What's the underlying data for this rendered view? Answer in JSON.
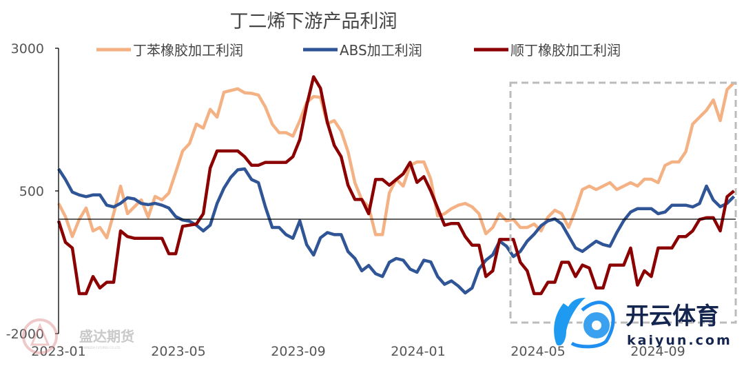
{
  "chart_data": {
    "type": "line",
    "title": "丁二烯下游产品利润",
    "xlabel": "",
    "ylabel": "",
    "ylim": [
      -2000,
      3000
    ],
    "yticks": [
      3000,
      500,
      -2000
    ],
    "reference_line_y": 0,
    "x_start": "2023-01",
    "x_step_months": 0.23,
    "xticks": [
      {
        "label": "2023-01",
        "month": 0
      },
      {
        "label": "2023-05",
        "month": 4
      },
      {
        "label": "2023-09",
        "month": 8
      },
      {
        "label": "2024-01",
        "month": 12
      },
      {
        "label": "2024-05",
        "month": 16
      },
      {
        "label": "2024-09",
        "month": 20
      }
    ],
    "legend_position": "top",
    "series": [
      {
        "name": "丁苯橡胶加工利润",
        "color": "#F4B183",
        "values": [
          283,
          50,
          -300,
          0,
          200,
          -200,
          -140,
          -321,
          101,
          585,
          101,
          222,
          343,
          41,
          403,
          343,
          464,
          826,
          1200,
          1330,
          1672,
          1600,
          1930,
          1793,
          2230,
          2260,
          2290,
          2220,
          2210,
          2180,
          1970,
          1670,
          1520,
          1520,
          1460,
          1732,
          2050,
          2155,
          2140,
          1680,
          1732,
          1551,
          1189,
          645,
          343,
          222,
          -266,
          -266,
          464,
          705,
          585,
          947,
          1007,
          1007,
          705,
          60,
          100,
          190,
          250,
          280,
          222,
          100,
          -250,
          -140,
          101,
          -24,
          0,
          -140,
          -140,
          -80,
          -200,
          41,
          162,
          101,
          -140,
          162,
          524,
          585,
          524,
          585,
          645,
          524,
          585,
          645,
          585,
          705,
          705,
          645,
          947,
          1007,
          1007,
          1189,
          1672,
          1793,
          1913,
          2094,
          1732,
          2276,
          2397
        ]
      },
      {
        "name": "ABS加工利润",
        "color": "#2F5597",
        "values": [
          887,
          700,
          480,
          430,
          400,
          430,
          430,
          250,
          220,
          283,
          380,
          360,
          280,
          260,
          283,
          250,
          200,
          50,
          -10,
          -30,
          -100,
          -200,
          -100,
          280,
          550,
          740,
          870,
          887,
          700,
          645,
          222,
          -140,
          -140,
          -266,
          -330,
          -24,
          -442,
          -623,
          -321,
          -230,
          -266,
          -266,
          -563,
          -684,
          -900,
          -805,
          -950,
          -1000,
          -750,
          -684,
          -714,
          -870,
          -925,
          -714,
          -744,
          -1000,
          -1137,
          -1076,
          -1167,
          -1288,
          -1200,
          -870,
          -714,
          -620,
          -380,
          -470,
          -650,
          -560,
          -380,
          -260,
          -110,
          -24,
          10,
          -80,
          -290,
          -500,
          -560,
          -470,
          -380,
          -440,
          -470,
          -230,
          -20,
          130,
          190,
          190,
          190,
          100,
          130,
          250,
          250,
          250,
          220,
          280,
          585,
          340,
          222,
          283,
          403
        ]
      },
      {
        "name": "顺丁橡胶加工利润",
        "color": "#8B0000",
        "values": [
          -24,
          -400,
          -500,
          -1300,
          -1300,
          -1000,
          -1200,
          -1100,
          -1100,
          -200,
          -300,
          -330,
          -330,
          -330,
          -330,
          -330,
          -600,
          -600,
          -120,
          -100,
          -80,
          100,
          900,
          1200,
          1200,
          1200,
          1200,
          1100,
          950,
          950,
          1000,
          1000,
          1000,
          1000,
          1100,
          1400,
          2000,
          2500,
          2300,
          1700,
          1300,
          1100,
          600,
          350,
          350,
          100,
          700,
          700,
          600,
          700,
          800,
          1000,
          650,
          750,
          500,
          200,
          -100,
          -70,
          -70,
          -300,
          -450,
          -450,
          -1000,
          -900,
          -350,
          -350,
          -350,
          -750,
          -900,
          -1300,
          -1300,
          -1100,
          -1100,
          -750,
          -750,
          -1000,
          -800,
          -850,
          -1200,
          -1200,
          -800,
          -800,
          -800,
          -500,
          -1150,
          -900,
          -1000,
          -500,
          -500,
          -500,
          -300,
          -300,
          -200,
          0,
          30,
          30,
          -200,
          400,
          500
        ]
      }
    ]
  },
  "watermarks": {
    "left_logo": "盛达期货",
    "left_logo_sub": "SHENGDA FUTURES CO.,LTD",
    "right_logo": "开云体育",
    "right_logo_sub": "kaiyun.com"
  }
}
